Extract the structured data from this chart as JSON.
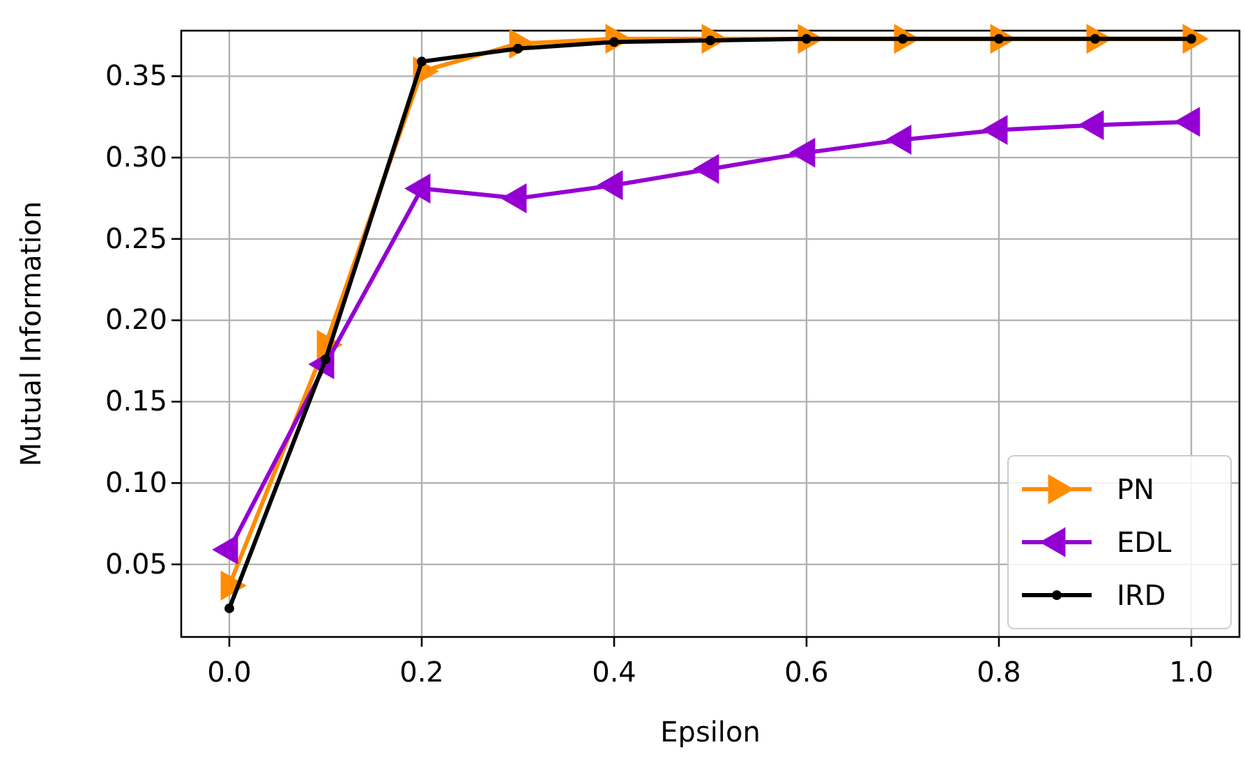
{
  "chart_data": {
    "type": "line",
    "xlabel": "Epsilon",
    "ylabel": "Mutual Information",
    "x": [
      0,
      0.1,
      0.2,
      0.3,
      0.4,
      0.5,
      0.6,
      0.7,
      0.8,
      0.9,
      1.0
    ],
    "series": [
      {
        "name": "PN",
        "color": "#ff8c00",
        "marker": "triangle-right",
        "values": [
          0.037,
          0.185,
          0.353,
          0.37,
          0.373,
          0.373,
          0.373,
          0.373,
          0.373,
          0.373,
          0.373
        ]
      },
      {
        "name": "EDL",
        "color": "#9400d3",
        "marker": "triangle-left",
        "values": [
          0.059,
          0.173,
          0.281,
          0.275,
          0.283,
          0.293,
          0.303,
          0.311,
          0.317,
          0.32,
          0.322
        ]
      },
      {
        "name": "IRD",
        "color": "#000000",
        "marker": "circle",
        "values": [
          0.023,
          0.176,
          0.359,
          0.367,
          0.371,
          0.372,
          0.373,
          0.373,
          0.373,
          0.373,
          0.373
        ]
      }
    ],
    "xlim": [
      -0.05,
      1.05
    ],
    "xticks": [
      {
        "value": 0,
        "label": "0.0"
      },
      0.2,
      0.4,
      0.6,
      0.8,
      {
        "value": 1,
        "label": "1.0"
      }
    ],
    "ylim": [
      0.0054,
      0.378
    ],
    "yticks": [
      0.05,
      {
        "value": 0.1,
        "label": "0.10"
      },
      0.15,
      {
        "value": 0.2,
        "label": "0.20"
      },
      0.25,
      {
        "value": 0.3,
        "label": "0.30"
      },
      0.35
    ],
    "grid": true,
    "legend": "bottom right",
    "line_style": "solid"
  }
}
